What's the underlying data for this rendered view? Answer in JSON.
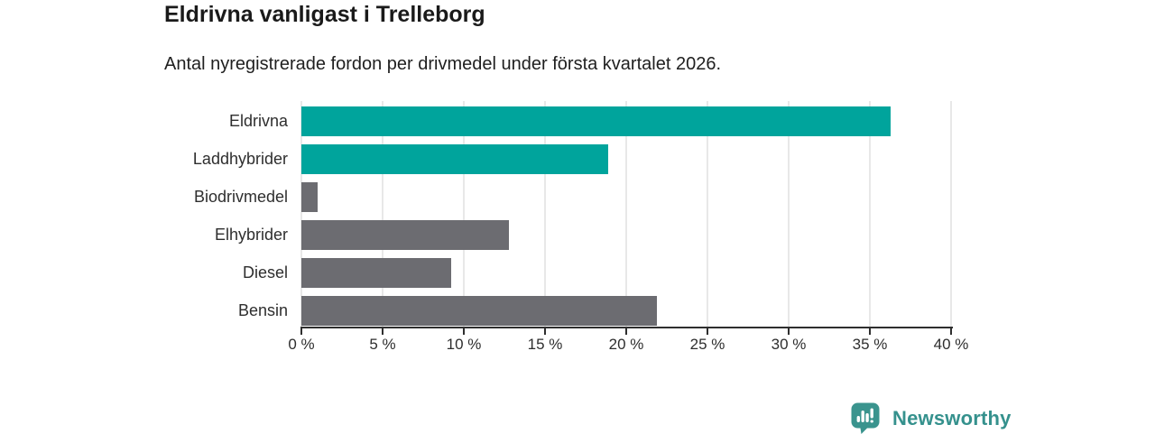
{
  "header": {
    "title": "Eldrivna vanligast i Trelleborg",
    "subtitle": "Antal nyregistrerade fordon per drivmedel under första kvartalet 2026."
  },
  "chart_data": {
    "type": "bar",
    "orientation": "horizontal",
    "title": "Eldrivna vanligast i Trelleborg",
    "subtitle": "Antal nyregistrerade fordon per drivmedel under första kvartalet 2026.",
    "categories": [
      "Eldrivna",
      "Laddhybrider",
      "Biodrivmedel",
      "Elhybrider",
      "Diesel",
      "Bensin"
    ],
    "values": [
      36.3,
      18.9,
      1.0,
      12.8,
      9.2,
      21.9
    ],
    "unit": "%",
    "bar_colors": [
      "#00a49c",
      "#00a49c",
      "#6c6c71",
      "#6c6c71",
      "#6c6c71",
      "#6c6c71"
    ],
    "highlight_color": "#00a49c",
    "default_color": "#6c6c71",
    "xlabel": "",
    "ylabel": "",
    "xlim": [
      0,
      40
    ],
    "xticks": [
      0,
      5,
      10,
      15,
      20,
      25,
      30,
      35,
      40
    ],
    "xtick_suffix": " %",
    "grid": true,
    "legend": "none"
  },
  "footer": {
    "brand": "Newsworthy",
    "brand_color": "#35918d",
    "logo_icon": "speech-bubble-bar-chart"
  }
}
